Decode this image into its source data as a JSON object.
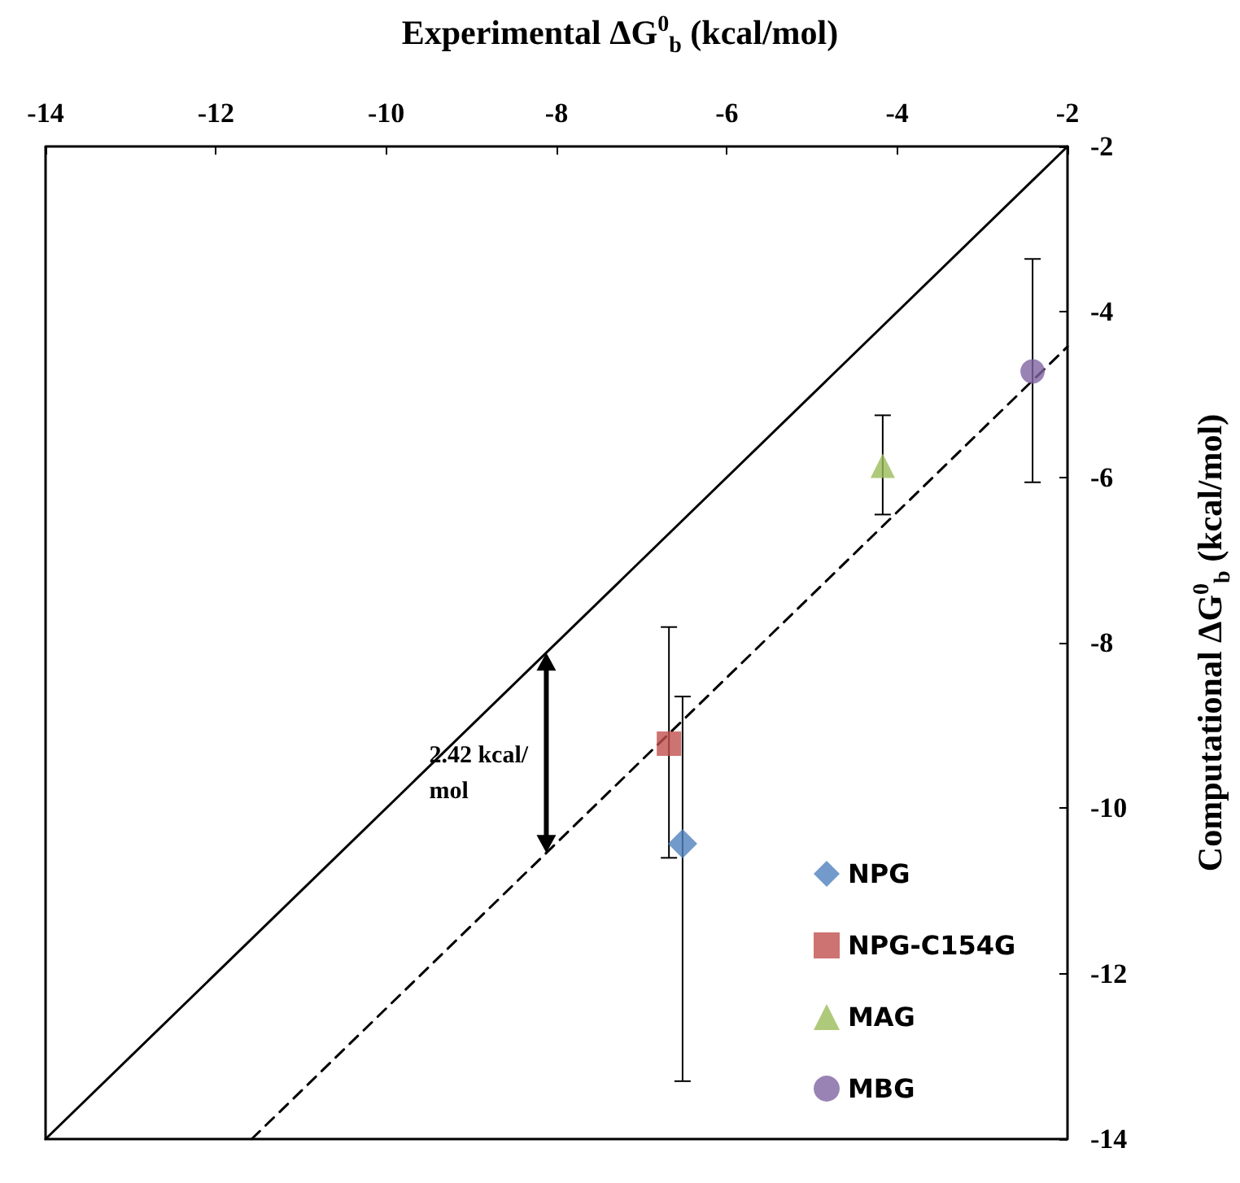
{
  "chart_data": {
    "type": "scatter",
    "xlabel": "Experimental ΔG$^{0}$$_{b}$ (kcal/mol)",
    "ylabel": "Computational ΔG$^{0}$$_{b}$ (kcal/mol)",
    "xlim": [
      -14,
      -2
    ],
    "xticks": [
      -14,
      -12,
      -10,
      -8,
      -6,
      -4,
      -2
    ],
    "ylim": [
      -14,
      -2
    ],
    "yticks": [
      -14,
      -12,
      -10,
      -8,
      -6,
      -4,
      -2
    ],
    "legend": "bottom right",
    "annotations": [
      "2.42 kcal/\nmol"
    ],
    "series": [
      {
        "type": "line",
        "x": [
          -14,
          -2
        ],
        "values": [
          -14,
          -2
        ],
        "color": "#000000",
        "line_style": "solid",
        "marker": "none"
      },
      {
        "type": "line",
        "x": [
          -11.58,
          -2
        ],
        "values": [
          -14,
          -4.42
        ],
        "color": "#000000",
        "line_style": "dashed",
        "marker": "none"
      },
      {
        "name": "NPG",
        "x": [
          -6.52
        ],
        "values": [
          -10.43
        ],
        "errors": [
          [
            -13.3,
            -8.65
          ]
        ],
        "color": "#4f81bd",
        "marker": "diamond"
      },
      {
        "name": "NPG-C154G",
        "x": [
          -6.68
        ],
        "values": [
          -9.22
        ],
        "errors": [
          [
            -10.6,
            -7.81
          ]
        ],
        "color": "#c0504d",
        "marker": "square"
      },
      {
        "name": "MAG",
        "x": [
          -4.17
        ],
        "values": [
          -5.86
        ],
        "errors": [
          [
            -6.45,
            -5.25
          ]
        ],
        "color": "#9bbb59",
        "marker": "triangle"
      },
      {
        "name": "MBG",
        "x": [
          -2.41
        ],
        "values": [
          -4.72
        ],
        "errors": [
          [
            -6.06,
            -3.36
          ]
        ],
        "color": "#8064a2",
        "marker": "circle"
      }
    ]
  }
}
